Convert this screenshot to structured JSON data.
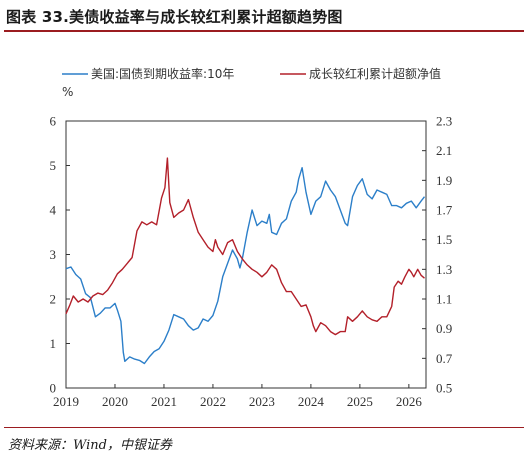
{
  "header": {
    "title": "图表 33.美债收益率与成长较红利累计超额趋势图",
    "source": "资料来源：Wind，中银证券"
  },
  "chart_data": {
    "type": "line",
    "title": "图表 33.美债收益率与成长较红利累计超额趋势图",
    "left_axis_unit": "%",
    "ylim_left": [
      0,
      6
    ],
    "ylim_right": [
      0.5,
      2.3
    ],
    "left_ticks": [
      "0",
      "1",
      "2",
      "3",
      "4",
      "5",
      "6"
    ],
    "right_ticks": [
      "0.5",
      "0.7",
      "0.9",
      "1.1",
      "1.3",
      "1.5",
      "1.7",
      "1.9",
      "2.1",
      "2.3"
    ],
    "x_ticks": [
      "2019",
      "2020",
      "2021",
      "2022",
      "2023",
      "2024",
      "2025",
      "2026"
    ],
    "xlim": [
      2019.0,
      2026.35
    ],
    "grid": false,
    "legend_position": "top",
    "series": [
      {
        "name": "美国:国债到期收益率:10年",
        "axis": "left",
        "color": "#2c7fc9",
        "points": [
          [
            2019.0,
            2.68
          ],
          [
            2019.1,
            2.72
          ],
          [
            2019.2,
            2.55
          ],
          [
            2019.3,
            2.45
          ],
          [
            2019.4,
            2.12
          ],
          [
            2019.5,
            2.03
          ],
          [
            2019.6,
            1.6
          ],
          [
            2019.7,
            1.68
          ],
          [
            2019.8,
            1.8
          ],
          [
            2019.9,
            1.8
          ],
          [
            2020.0,
            1.9
          ],
          [
            2020.05,
            1.75
          ],
          [
            2020.12,
            1.5
          ],
          [
            2020.17,
            0.8
          ],
          [
            2020.2,
            0.6
          ],
          [
            2020.3,
            0.7
          ],
          [
            2020.4,
            0.65
          ],
          [
            2020.5,
            0.62
          ],
          [
            2020.6,
            0.55
          ],
          [
            2020.7,
            0.7
          ],
          [
            2020.8,
            0.82
          ],
          [
            2020.9,
            0.88
          ],
          [
            2021.0,
            1.05
          ],
          [
            2021.1,
            1.3
          ],
          [
            2021.2,
            1.65
          ],
          [
            2021.3,
            1.6
          ],
          [
            2021.4,
            1.55
          ],
          [
            2021.5,
            1.4
          ],
          [
            2021.6,
            1.3
          ],
          [
            2021.7,
            1.35
          ],
          [
            2021.8,
            1.55
          ],
          [
            2021.9,
            1.5
          ],
          [
            2022.0,
            1.63
          ],
          [
            2022.1,
            1.95
          ],
          [
            2022.2,
            2.5
          ],
          [
            2022.3,
            2.8
          ],
          [
            2022.4,
            3.1
          ],
          [
            2022.5,
            2.9
          ],
          [
            2022.55,
            2.7
          ],
          [
            2022.6,
            2.9
          ],
          [
            2022.7,
            3.5
          ],
          [
            2022.8,
            4.0
          ],
          [
            2022.9,
            3.65
          ],
          [
            2023.0,
            3.75
          ],
          [
            2023.1,
            3.7
          ],
          [
            2023.15,
            3.9
          ],
          [
            2023.2,
            3.5
          ],
          [
            2023.3,
            3.45
          ],
          [
            2023.4,
            3.7
          ],
          [
            2023.5,
            3.8
          ],
          [
            2023.6,
            4.2
          ],
          [
            2023.7,
            4.4
          ],
          [
            2023.75,
            4.7
          ],
          [
            2023.82,
            4.95
          ],
          [
            2023.9,
            4.4
          ],
          [
            2024.0,
            3.9
          ],
          [
            2024.1,
            4.2
          ],
          [
            2024.2,
            4.3
          ],
          [
            2024.3,
            4.65
          ],
          [
            2024.4,
            4.45
          ],
          [
            2024.5,
            4.3
          ],
          [
            2024.6,
            4.0
          ],
          [
            2024.7,
            3.7
          ],
          [
            2024.75,
            3.65
          ],
          [
            2024.85,
            4.3
          ],
          [
            2024.95,
            4.55
          ],
          [
            2025.05,
            4.7
          ],
          [
            2025.15,
            4.35
          ],
          [
            2025.25,
            4.25
          ],
          [
            2025.35,
            4.45
          ],
          [
            2025.45,
            4.4
          ],
          [
            2025.55,
            4.35
          ],
          [
            2025.65,
            4.1
          ],
          [
            2025.75,
            4.1
          ],
          [
            2025.85,
            4.05
          ],
          [
            2025.95,
            4.15
          ],
          [
            2026.05,
            4.2
          ],
          [
            2026.15,
            4.05
          ],
          [
            2026.25,
            4.2
          ],
          [
            2026.32,
            4.3
          ]
        ]
      },
      {
        "name": "成长较红利累计超额净值",
        "axis": "right",
        "color": "#b3202a",
        "points": [
          [
            2019.0,
            1.0
          ],
          [
            2019.08,
            1.06
          ],
          [
            2019.15,
            1.12
          ],
          [
            2019.25,
            1.08
          ],
          [
            2019.35,
            1.1
          ],
          [
            2019.45,
            1.08
          ],
          [
            2019.55,
            1.12
          ],
          [
            2019.65,
            1.14
          ],
          [
            2019.75,
            1.13
          ],
          [
            2019.85,
            1.16
          ],
          [
            2019.95,
            1.21
          ],
          [
            2020.05,
            1.27
          ],
          [
            2020.15,
            1.3
          ],
          [
            2020.25,
            1.34
          ],
          [
            2020.35,
            1.38
          ],
          [
            2020.45,
            1.56
          ],
          [
            2020.55,
            1.62
          ],
          [
            2020.65,
            1.6
          ],
          [
            2020.75,
            1.62
          ],
          [
            2020.85,
            1.6
          ],
          [
            2020.95,
            1.78
          ],
          [
            2021.02,
            1.85
          ],
          [
            2021.07,
            2.05
          ],
          [
            2021.12,
            1.75
          ],
          [
            2021.2,
            1.65
          ],
          [
            2021.3,
            1.68
          ],
          [
            2021.4,
            1.7
          ],
          [
            2021.5,
            1.77
          ],
          [
            2021.6,
            1.65
          ],
          [
            2021.7,
            1.55
          ],
          [
            2021.8,
            1.5
          ],
          [
            2021.9,
            1.45
          ],
          [
            2022.0,
            1.42
          ],
          [
            2022.05,
            1.5
          ],
          [
            2022.1,
            1.45
          ],
          [
            2022.2,
            1.4
          ],
          [
            2022.3,
            1.48
          ],
          [
            2022.4,
            1.5
          ],
          [
            2022.5,
            1.42
          ],
          [
            2022.6,
            1.37
          ],
          [
            2022.7,
            1.33
          ],
          [
            2022.8,
            1.3
          ],
          [
            2022.9,
            1.28
          ],
          [
            2023.0,
            1.25
          ],
          [
            2023.1,
            1.28
          ],
          [
            2023.2,
            1.33
          ],
          [
            2023.3,
            1.3
          ],
          [
            2023.4,
            1.21
          ],
          [
            2023.5,
            1.15
          ],
          [
            2023.6,
            1.15
          ],
          [
            2023.7,
            1.1
          ],
          [
            2023.8,
            1.05
          ],
          [
            2023.9,
            1.06
          ],
          [
            2024.0,
            0.98
          ],
          [
            2024.05,
            0.92
          ],
          [
            2024.1,
            0.88
          ],
          [
            2024.2,
            0.94
          ],
          [
            2024.3,
            0.92
          ],
          [
            2024.4,
            0.88
          ],
          [
            2024.5,
            0.86
          ],
          [
            2024.6,
            0.88
          ],
          [
            2024.7,
            0.88
          ],
          [
            2024.75,
            0.98
          ],
          [
            2024.85,
            0.95
          ],
          [
            2024.95,
            0.98
          ],
          [
            2025.05,
            1.02
          ],
          [
            2025.15,
            0.98
          ],
          [
            2025.25,
            0.96
          ],
          [
            2025.35,
            0.95
          ],
          [
            2025.45,
            0.98
          ],
          [
            2025.55,
            0.98
          ],
          [
            2025.65,
            1.05
          ],
          [
            2025.7,
            1.18
          ],
          [
            2025.78,
            1.22
          ],
          [
            2025.85,
            1.2
          ],
          [
            2025.92,
            1.25
          ],
          [
            2026.0,
            1.3
          ],
          [
            2026.05,
            1.28
          ],
          [
            2026.1,
            1.25
          ],
          [
            2026.18,
            1.3
          ],
          [
            2026.25,
            1.26
          ],
          [
            2026.32,
            1.24
          ]
        ]
      }
    ]
  }
}
